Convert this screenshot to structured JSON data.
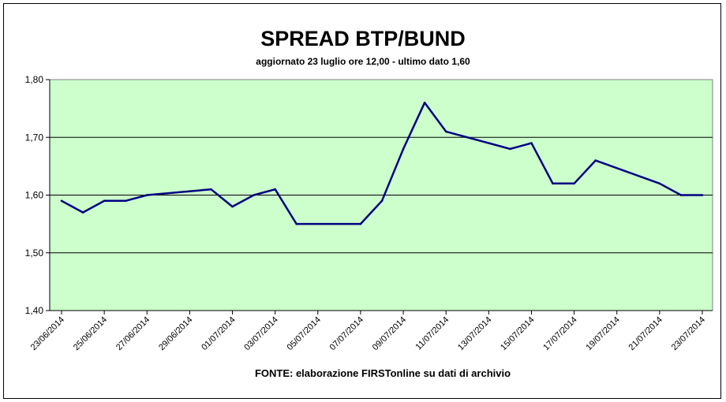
{
  "chart_data": {
    "type": "line",
    "title": "SPREAD BTP/BUND",
    "subtitle": "aggiornato 23 luglio ore 12,00 - ultimo dato 1,60",
    "source": "FONTE:  elaborazione FIRSTonline su dati di archivio",
    "xlabel": "",
    "ylabel": "",
    "ylim": [
      1.4,
      1.8
    ],
    "y_ticks": [
      "1,40",
      "1,50",
      "1,60",
      "1,70",
      "1,80"
    ],
    "x_tick_labels": [
      "23/06/2014",
      "25/06/2014",
      "27/06/2014",
      "29/06/2014",
      "01/07/2014",
      "03/07/2014",
      "05/07/2014",
      "07/07/2014",
      "09/07/2014",
      "11/07/2014",
      "13/07/2014",
      "15/07/2014",
      "17/07/2014",
      "19/07/2014",
      "21/07/2014",
      "23/07/2014"
    ],
    "x_start_label": "23/06/2014",
    "x_days": 30,
    "grid": true,
    "colors": {
      "plot_bg": "#ccffcc",
      "line": "#000080",
      "grid": "#000000"
    },
    "series": [
      {
        "x": [
          "23/06/2014",
          "24/06/2014",
          "25/06/2014",
          "26/06/2014",
          "27/06/2014",
          "30/06/2014",
          "01/07/2014",
          "02/07/2014",
          "03/07/2014",
          "04/07/2014",
          "07/07/2014",
          "08/07/2014",
          "09/07/2014",
          "10/07/2014",
          "11/07/2014",
          "14/07/2014",
          "15/07/2014",
          "16/07/2014",
          "17/07/2014",
          "18/07/2014",
          "21/07/2014",
          "22/07/2014",
          "23/07/2014"
        ],
        "values": [
          1.59,
          1.57,
          1.59,
          1.59,
          1.6,
          1.61,
          1.58,
          1.6,
          1.61,
          1.55,
          1.55,
          1.59,
          1.68,
          1.76,
          1.71,
          1.68,
          1.69,
          1.62,
          1.62,
          1.66,
          1.62,
          1.6,
          1.6
        ]
      }
    ]
  }
}
